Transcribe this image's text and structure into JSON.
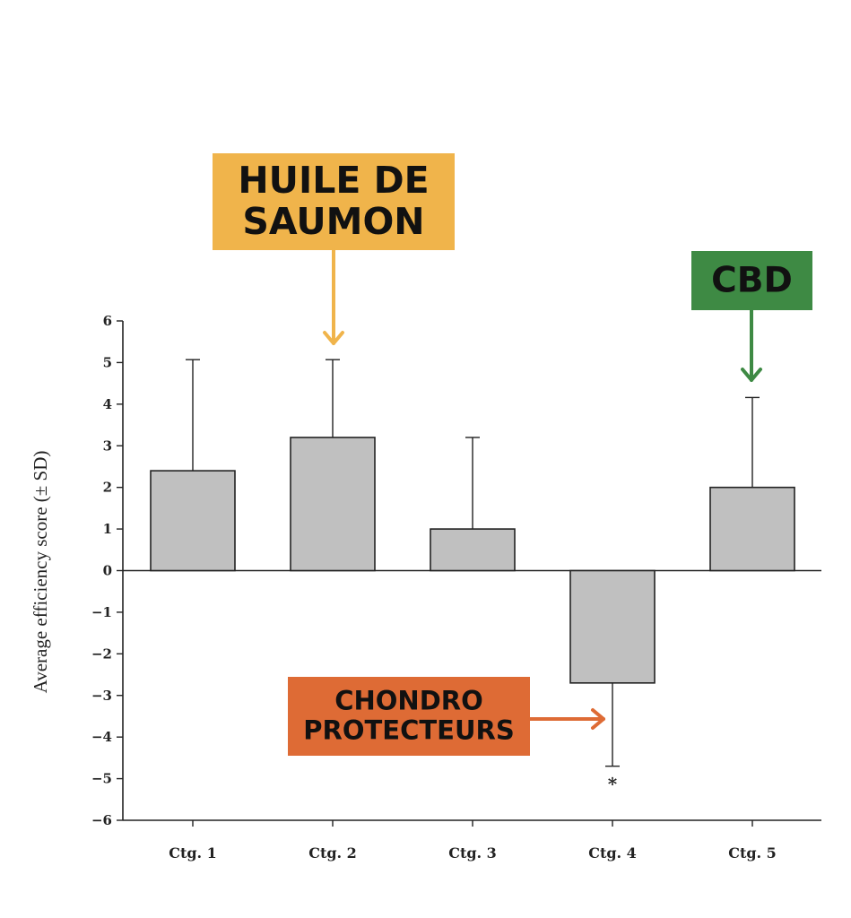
{
  "chart_data": {
    "type": "bar",
    "categories": [
      "Ctg. 1",
      "Ctg. 2",
      "Ctg. 3",
      "Ctg. 4",
      "Ctg. 5"
    ],
    "values": [
      2.4,
      3.2,
      1.0,
      -2.7,
      2.0
    ],
    "error_bars": [
      2.67,
      1.87,
      2.2,
      2.0,
      2.16
    ],
    "significance": [
      "",
      "",
      "",
      "*",
      ""
    ],
    "ylabel": "Average efficiency score (± SD)",
    "ylim": [
      -6,
      6
    ],
    "yticks": [
      "6",
      "5",
      "4",
      "3",
      "2",
      "1",
      "0",
      "−1",
      "−2",
      "−3",
      "−4",
      "−5",
      "−6"
    ],
    "grid": false,
    "bar_color": "#c0c0c0"
  },
  "annotations": [
    {
      "lines": [
        "HUILE DE",
        "SAUMON"
      ],
      "bg": "#f0b44b",
      "text_color": "#111111",
      "target_category": 1
    },
    {
      "lines": [
        "CBD"
      ],
      "bg": "#3e8a44",
      "text_color": "#111111",
      "target_category": 4
    },
    {
      "lines": [
        "CHONDRO",
        "PROTECTEURS"
      ],
      "bg": "#de6b35",
      "text_color": "#111111",
      "target_category": 3
    }
  ]
}
